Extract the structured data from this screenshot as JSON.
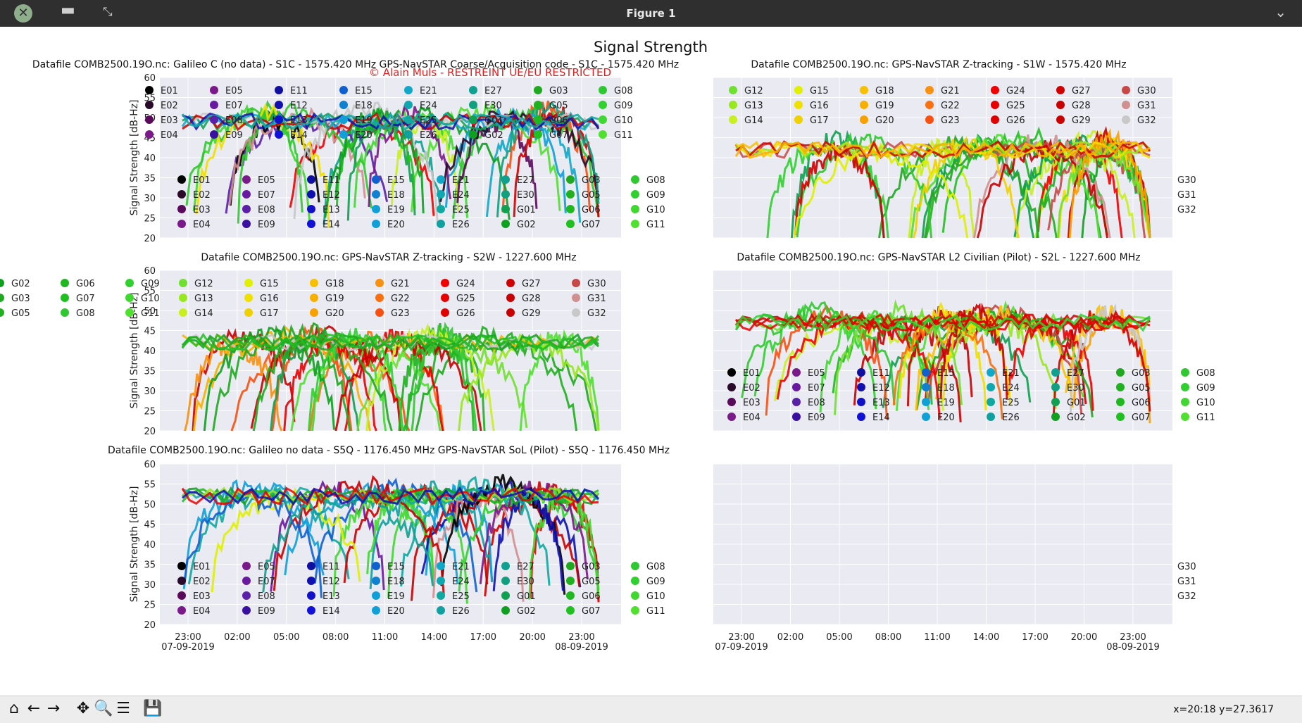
{
  "window": {
    "title": "Figure 1",
    "close_glyph": "✕",
    "minimize_glyph": "▬",
    "maximize_glyph": "⤡",
    "menu_glyph": "⌄"
  },
  "toolbar": {
    "tools": [
      {
        "name": "home-icon",
        "glyph": "⌂"
      },
      {
        "name": "back-icon",
        "glyph": "←"
      },
      {
        "name": "forward-icon",
        "glyph": "→"
      },
      {
        "name": "pan-icon",
        "glyph": "✥"
      },
      {
        "name": "zoom-icon",
        "glyph": "🔍"
      },
      {
        "name": "configure-subplots-icon",
        "glyph": "☰"
      },
      {
        "name": "save-icon",
        "glyph": "💾"
      }
    ],
    "coords": "x=20:18 y=27.3617"
  },
  "chart_data": {
    "type": "line",
    "suptitle": "Signal Strength",
    "watermark": "© Alain Muls - RESTREINT UE/EU RESTRICTED",
    "ylabel": "Signal Strength [dB-Hz]",
    "ylim": [
      20,
      60
    ],
    "yticks": [
      20,
      25,
      30,
      35,
      40,
      45,
      50,
      55,
      60
    ],
    "xticks": [
      "23:00",
      "02:00",
      "05:00",
      "08:00",
      "11:00",
      "14:00",
      "17:00",
      "20:00",
      "23:00"
    ],
    "xdate_left": "07-09-2019",
    "xdate_right": "08-09-2019",
    "galileo_legend": [
      "E01",
      "E02",
      "E03",
      "E04",
      "E05",
      "E07",
      "E08",
      "E09",
      "E11",
      "E12",
      "E13",
      "E14",
      "E15",
      "E18",
      "E19",
      "E20",
      "E21",
      "E24",
      "E25",
      "E26",
      "E27",
      "E30",
      "G01",
      "G02",
      "G03",
      "G05",
      "G06",
      "G07",
      "G08",
      "G09",
      "G10",
      "G11"
    ],
    "gps_legend": [
      "G12",
      "G13",
      "G14",
      "G15",
      "G16",
      "G17",
      "G18",
      "G19",
      "G20",
      "G21",
      "G22",
      "G23",
      "G24",
      "G25",
      "G26",
      "G27",
      "G28",
      "G29",
      "G30",
      "G31",
      "G32"
    ],
    "gps_legend_right_fragment": [
      "G30",
      "G31",
      "G32"
    ],
    "gps_legend_left_fragment": [
      "G02",
      "G03",
      "G05",
      "G06",
      "G07",
      "G08",
      "G09",
      "G10",
      "G11"
    ],
    "colors": {
      "E01": "#000000",
      "E02": "#2a0a2a",
      "E03": "#5a0a5a",
      "E04": "#7a1a8a",
      "E05": "#7a1a8a",
      "E07": "#6a1aa0",
      "E08": "#5a20a8",
      "E09": "#3a10a0",
      "E11": "#1010a0",
      "E12": "#1010b0",
      "E13": "#1010c8",
      "E14": "#1010d8",
      "E15": "#1060d0",
      "E18": "#1080d0",
      "E19": "#10a0d8",
      "E20": "#10a0d8",
      "E21": "#10a8c8",
      "E24": "#10a8b0",
      "E25": "#10a8a0",
      "E26": "#10a0a0",
      "E27": "#10a090",
      "E30": "#10a080",
      "G01": "#10a050",
      "G02": "#10a020",
      "G03": "#20a820",
      "G05": "#20b020",
      "G06": "#20b820",
      "G07": "#20c020",
      "G08": "#30c830",
      "G09": "#30d030",
      "G10": "#40d830",
      "G11": "#50e030",
      "G12": "#70e030",
      "G13": "#98e820",
      "G14": "#c8f020",
      "G15": "#e0f000",
      "G16": "#f0e000",
      "G17": "#f0d000",
      "G18": "#f8c000",
      "G19": "#f8b000",
      "G20": "#f8a000",
      "G21": "#f89010",
      "G22": "#f87010",
      "G23": "#f85010",
      "G24": "#f00000",
      "G25": "#e80000",
      "G26": "#e00000",
      "G27": "#d00000",
      "G28": "#c80000",
      "G29": "#c80000",
      "G30": "#c84848",
      "G31": "#d09090",
      "G32": "#c8c8c8"
    },
    "subplots": [
      {
        "title": "Datafile COMB2500.19O.nc: Galileo C (no data) - S1C - 1575.420 MHz  GPS-NavSTAR Coarse/Acquisition code - S1C - 1575.420 MHz",
        "signal": "S1C",
        "band": [
          30,
          52
        ],
        "palette": "mixed"
      },
      {
        "title": "Datafile COMB2500.19O.nc: GPS-NavSTAR Z-tracking - S1W - 1575.420 MHz",
        "signal": "S1W",
        "band": [
          22,
          45
        ],
        "palette": "gps"
      },
      {
        "title": "Datafile COMB2500.19O.nc: GPS-NavSTAR Z-tracking - S2W - 1227.600 MHz",
        "signal": "S2W",
        "band": [
          22,
          45
        ],
        "palette": "gps"
      },
      {
        "title": "Datafile COMB2500.19O.nc: GPS-NavSTAR L2 Civilian (Pilot) - S2L - 1227.600 MHz",
        "signal": "S2L",
        "band": [
          30,
          50
        ],
        "palette": "gps"
      },
      {
        "title": "Datafile COMB2500.19O.nc: Galileo no data - S5Q - 1176.450 MHz  GPS-NavSTAR SoL (Pilot) - S5Q - 1176.450 MHz",
        "signal": "S5Q",
        "band": [
          33,
          55
        ],
        "palette": "mixed"
      },
      {
        "title": "",
        "signal": "",
        "band": [],
        "palette": "empty"
      }
    ]
  }
}
